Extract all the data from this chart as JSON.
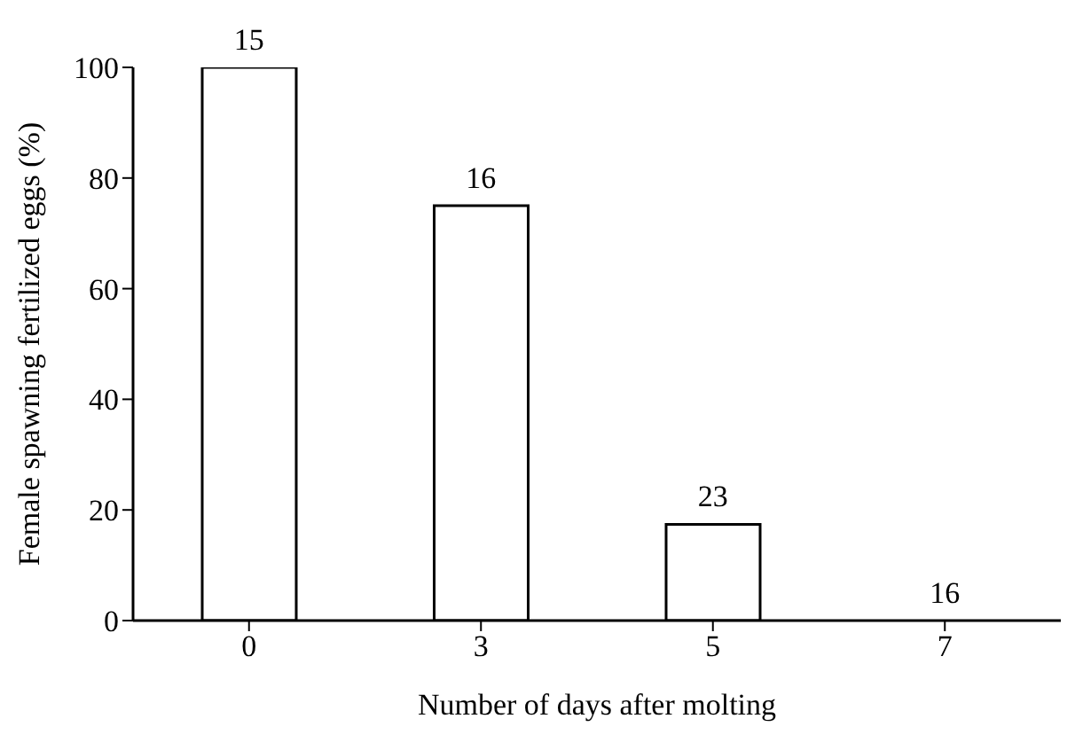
{
  "chart_data": {
    "type": "bar",
    "xlabel": "Number of days after molting",
    "ylabel": "Female spawning fertilized eggs (%)",
    "categories": [
      "0",
      "3",
      "5",
      "7"
    ],
    "values": [
      100,
      75,
      17.4,
      0
    ],
    "color": "#ffffff",
    "annotations": [
      {
        "text": "15",
        "x": "0",
        "y": 100
      },
      {
        "text": "16",
        "x": "3",
        "y": 75
      },
      {
        "text": "23",
        "x": "5",
        "y": 17.4
      },
      {
        "text": "16",
        "x": "7",
        "y": 0
      }
    ],
    "ylim": [
      0,
      100
    ],
    "yticks": [
      0,
      20,
      40,
      60,
      80,
      100
    ],
    "grid": false,
    "legend": false
  }
}
